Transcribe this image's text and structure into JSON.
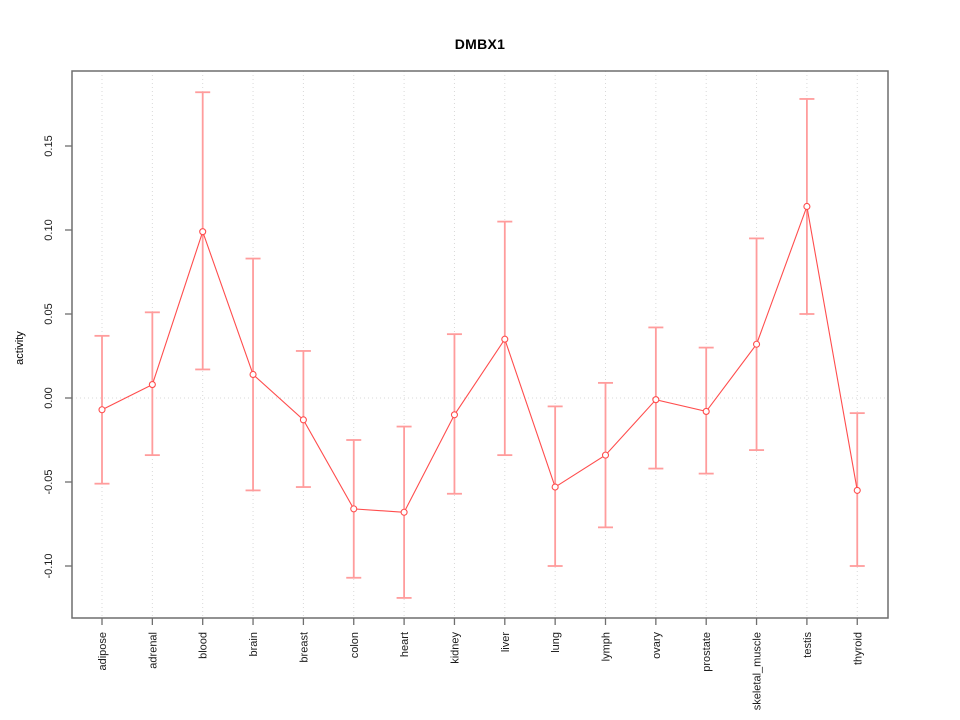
{
  "page": {
    "background": "#ffffff"
  },
  "chart_data": {
    "type": "line",
    "title": "DMBX1",
    "xlabel": "",
    "ylabel": "activity",
    "categories": [
      "adipose",
      "adrenal",
      "blood",
      "brain",
      "breast",
      "colon",
      "heart",
      "kidney",
      "liver",
      "lung",
      "lymph",
      "ovary",
      "prostate",
      "skeletal_muscle",
      "testis",
      "thyroid"
    ],
    "series": [
      {
        "name": "activity",
        "values": [
          -0.007,
          0.008,
          0.099,
          0.014,
          -0.013,
          -0.066,
          -0.068,
          -0.01,
          0.035,
          -0.053,
          -0.034,
          -0.001,
          -0.008,
          0.032,
          0.114,
          -0.055
        ],
        "lower": [
          -0.051,
          -0.034,
          0.017,
          -0.055,
          -0.053,
          -0.107,
          -0.119,
          -0.057,
          -0.034,
          -0.1,
          -0.077,
          -0.042,
          -0.045,
          -0.031,
          0.05,
          -0.1
        ],
        "upper": [
          0.037,
          0.051,
          0.182,
          0.083,
          0.028,
          -0.025,
          -0.017,
          0.038,
          0.105,
          -0.005,
          0.009,
          0.042,
          0.03,
          0.095,
          0.178,
          -0.009
        ]
      }
    ],
    "error_bars": true,
    "marker": "open-circle",
    "yticks": [
      -0.1,
      -0.05,
      0.0,
      0.05,
      0.1,
      0.15
    ],
    "ylim": [
      -0.131,
      0.194
    ],
    "grid": {
      "vertical_dotted": true,
      "zero_line_dotted": true,
      "legend": "none"
    },
    "colors": {
      "line": "#ff4d4d",
      "marker_stroke": "#ff4d4d",
      "marker_fill": "#ffffff",
      "error_bar": "#ff9c9c",
      "grid": "#d9d9d9",
      "axis_box": "#6e6e6e",
      "tick_text": "#1a1a1a",
      "title_text": "#000000"
    }
  }
}
